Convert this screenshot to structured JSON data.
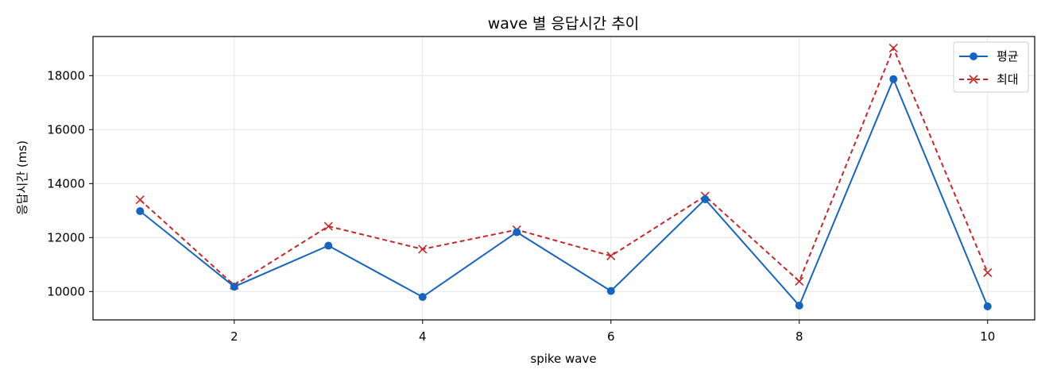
{
  "chart_data": {
    "type": "line",
    "title": "wave 별 응답시간 추이",
    "xlabel": "spike wave",
    "ylabel": "응답시간 (ms)",
    "xlim": [
      0.5,
      10.5
    ],
    "ylim": [
      8950,
      19450
    ],
    "xticks": [
      2,
      4,
      6,
      8,
      10
    ],
    "yticks": [
      10000,
      12000,
      14000,
      16000,
      18000
    ],
    "grid": true,
    "legend_position": "top-right",
    "x": [
      1,
      2,
      3,
      4,
      5,
      6,
      7,
      8,
      9,
      10
    ],
    "series": [
      {
        "name": "평균",
        "color": "#1565c0",
        "style": "solid",
        "marker": "circle",
        "values": [
          12980,
          10180,
          11700,
          9800,
          12200,
          10020,
          13420,
          9480,
          17870,
          9450
        ]
      },
      {
        "name": "최대",
        "color": "#c62828",
        "style": "dashed",
        "marker": "x",
        "values": [
          13400,
          10230,
          12420,
          11570,
          12290,
          11320,
          13540,
          10380,
          19020,
          10700
        ]
      }
    ]
  }
}
